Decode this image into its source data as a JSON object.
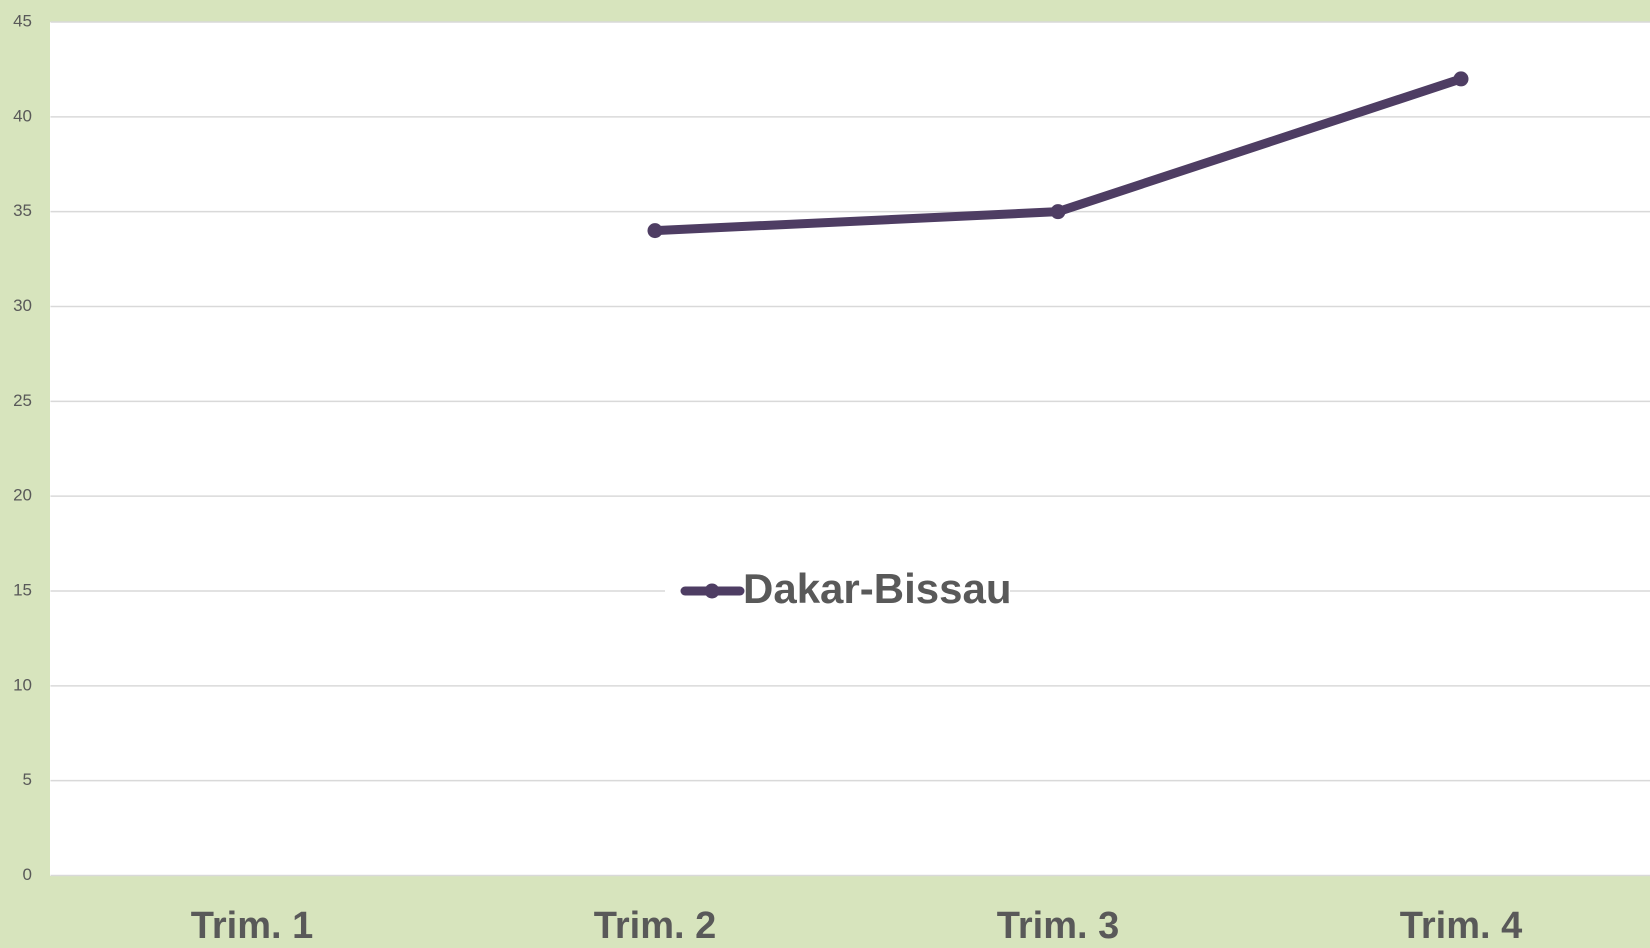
{
  "chart_data": {
    "type": "line",
    "categories": [
      "Trim. 1",
      "Trim. 2",
      "Trim. 3",
      "Trim. 4"
    ],
    "series": [
      {
        "name": "Dakar-Bissau",
        "color": "#4e3d63",
        "values": [
          null,
          34,
          35,
          42
        ]
      }
    ],
    "ylim": [
      0,
      45
    ],
    "yticks": [
      0,
      5,
      10,
      15,
      20,
      25,
      30,
      35,
      40,
      45
    ],
    "grid": true,
    "legend": "center"
  }
}
